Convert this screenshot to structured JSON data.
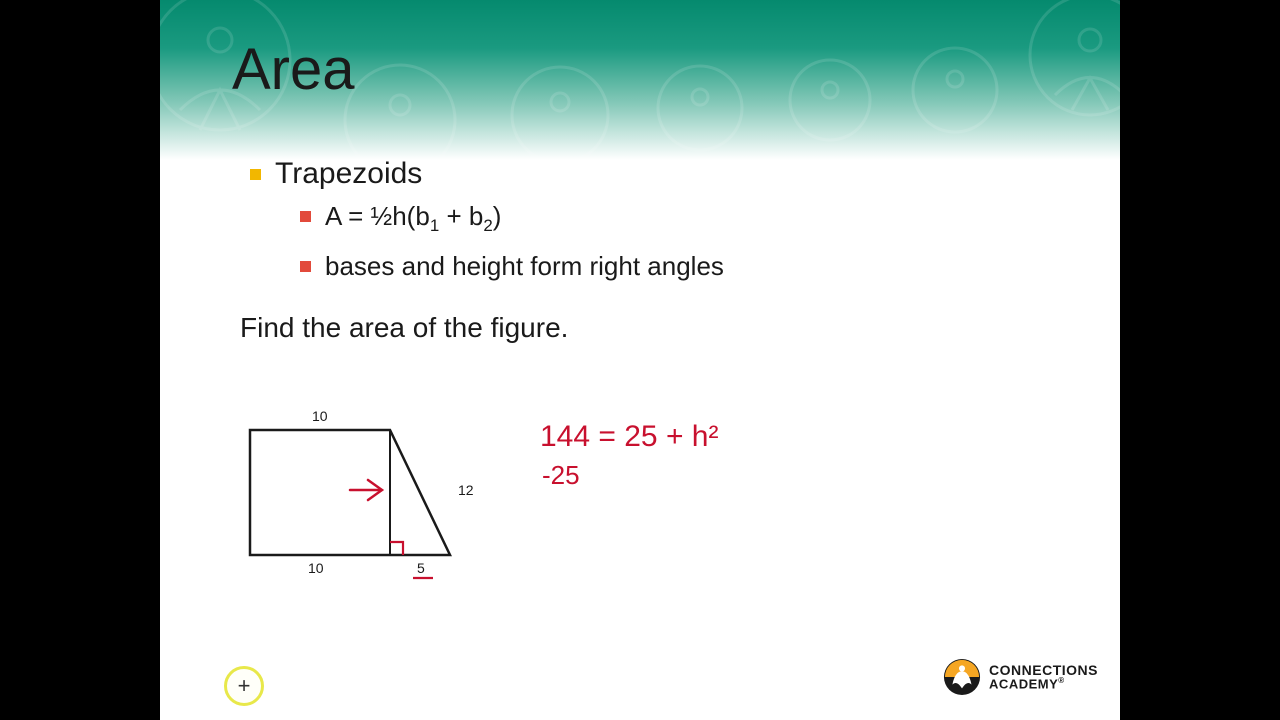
{
  "colors": {
    "header_top": "#058a6e",
    "header_mid": "#1a9a80",
    "header_low": "#86c9b9",
    "background": "#ffffff",
    "letterbox": "#000000",
    "text": "#1a1a1a",
    "bullet_primary": "#f2b700",
    "bullet_secondary": "#e24a3b",
    "handwriting": "#c8102e",
    "cursor_ring": "#e8e84a",
    "logo_orange": "#f5a623",
    "logo_black": "#1a1a1a",
    "logo_white": "#ffffff"
  },
  "title": "Area",
  "bullets": {
    "main": "Trapezoids",
    "sub1_html": "A = ½h(b<sub>1</sub> + b<sub>2</sub>)",
    "sub2": "bases and height form right angles"
  },
  "prompt": "Find the area of the figure.",
  "figure": {
    "type": "trapezoid",
    "top_base": 10,
    "bottom_left_segment": 10,
    "bottom_right_segment": 5,
    "slant_side": 12,
    "stroke": "#1a1a1a",
    "stroke_width": 2,
    "annotation_color": "#c8102e",
    "right_angle_marker": true,
    "height_line": true,
    "arrow_to_height": true,
    "underline_5": true
  },
  "handwork": {
    "line1": "144 = 25 + h²",
    "line2": "-25"
  },
  "logo": {
    "line1": "CONNECTIONS",
    "line2": "ACADEMY",
    "registered": "®"
  },
  "cursor_glyph": "+",
  "fonts": {
    "title_size": 58,
    "lvl1_size": 30,
    "lvl2_size": 26,
    "prompt_size": 28,
    "hand_size": 30,
    "dim_size": 14
  }
}
